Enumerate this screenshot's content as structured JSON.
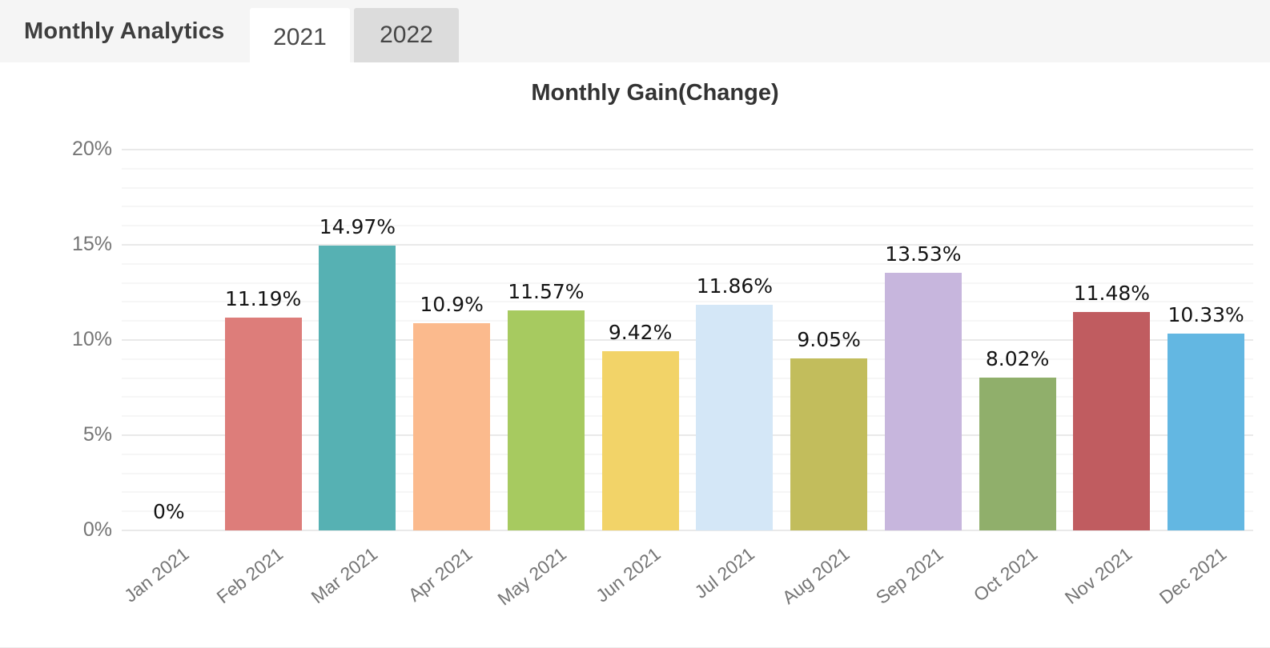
{
  "header": {
    "title": "Monthly Analytics",
    "tabs": [
      {
        "label": "2021",
        "active": true
      },
      {
        "label": "2022",
        "active": false
      }
    ]
  },
  "chart_data": {
    "type": "bar",
    "title": "Monthly Gain(Change)",
    "categories": [
      "Jan 2021",
      "Feb 2021",
      "Mar 2021",
      "Apr 2021",
      "May 2021",
      "Jun 2021",
      "Jul 2021",
      "Aug 2021",
      "Sep 2021",
      "Oct 2021",
      "Nov 2021",
      "Dec 2021"
    ],
    "values": [
      0,
      11.19,
      14.97,
      10.9,
      11.57,
      9.42,
      11.86,
      9.05,
      13.53,
      8.02,
      11.48,
      10.33
    ],
    "value_labels": [
      "0%",
      "11.19%",
      "14.97%",
      "10.9%",
      "11.57%",
      "9.42%",
      "11.86%",
      "9.05%",
      "13.53%",
      "8.02%",
      "11.48%",
      "10.33%"
    ],
    "bar_colors": [
      "#ffffff",
      "#DD7D7A",
      "#56B1B3",
      "#FBBA8D",
      "#A7CA60",
      "#F2D368",
      "#D4E7F7",
      "#C2BD5C",
      "#C7B6DD",
      "#90AF6B",
      "#C05C60",
      "#63B7E2"
    ],
    "xlabel": "",
    "ylabel": "",
    "ylim": [
      0,
      20
    ],
    "yticks": [
      0,
      5,
      10,
      15,
      20
    ],
    "ytick_labels": [
      "0%",
      "5%",
      "10%",
      "15%",
      "20%"
    ],
    "minor_grid_step": 1,
    "grid": true,
    "legend": "none",
    "label_color": "#141414",
    "axis_text_color": "#757575"
  }
}
